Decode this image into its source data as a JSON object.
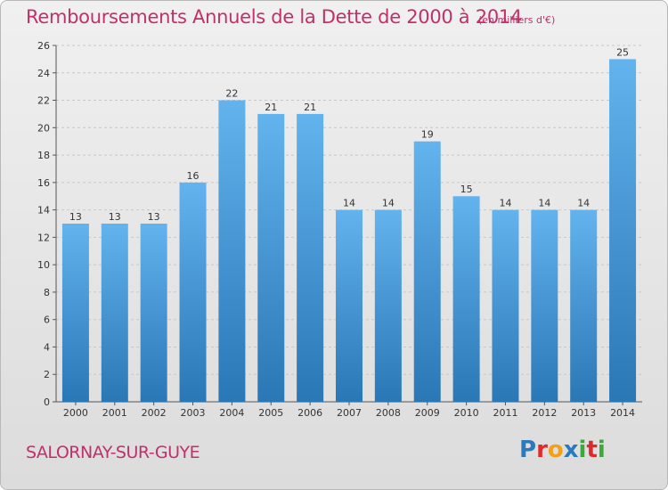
{
  "title": "Remboursements Annuels de la Dette de 2000 à 2014",
  "unit": "(en milliers d'€)",
  "city": "SALORNAY-SUR-GUYE",
  "logo": {
    "letters": [
      "P",
      "r",
      "o",
      "x",
      "i",
      "t",
      "i"
    ],
    "colors": [
      "#2a7bbd",
      "#e0292b",
      "#f2a01a",
      "#2a7bbd",
      "#3aa935",
      "#e0292b",
      "#3aa935"
    ]
  },
  "colors": {
    "bar_light": "#62b3ee",
    "bar_dark": "#2a77b6",
    "title": "#c0306a",
    "grid": "#c8c8c8"
  },
  "chart_data": {
    "type": "bar",
    "title": "Remboursements Annuels de la Dette de 2000 à 2014",
    "xlabel": "",
    "ylabel": "",
    "categories": [
      "2000",
      "2001",
      "2002",
      "2003",
      "2004",
      "2005",
      "2006",
      "2007",
      "2008",
      "2009",
      "2010",
      "2011",
      "2012",
      "2013",
      "2014"
    ],
    "values": [
      13,
      13,
      13,
      16,
      22,
      21,
      21,
      14,
      14,
      19,
      15,
      14,
      14,
      14,
      25
    ],
    "ylim": [
      0,
      26
    ],
    "yticks": [
      0,
      2,
      4,
      6,
      8,
      10,
      12,
      14,
      16,
      18,
      20,
      22,
      24,
      26
    ],
    "grid": true
  }
}
